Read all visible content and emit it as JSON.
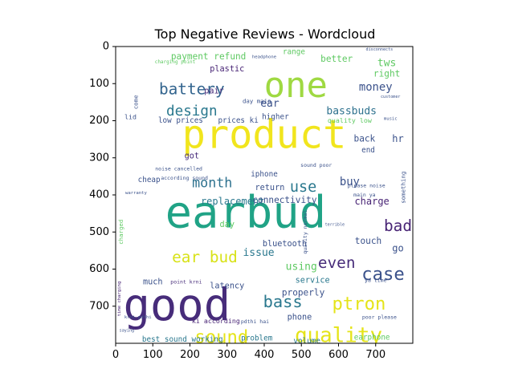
{
  "chart_data": {
    "type": "wordcloud",
    "title": "Top Negative Reviews - Wordcloud",
    "xlabel": "",
    "ylabel": "",
    "xlim": [
      0,
      800
    ],
    "ylim": [
      800,
      0
    ],
    "x_ticks": [
      0,
      100,
      200,
      300,
      400,
      500,
      600,
      700
    ],
    "y_ticks": [
      0,
      100,
      200,
      300,
      400,
      500,
      600,
      700
    ],
    "grid": false,
    "colormap": "viridis",
    "background": "#ffffff",
    "words": [
      {
        "text": "one",
        "x": 485,
        "y": 110,
        "size": 95,
        "color": "#9fd942"
      },
      {
        "text": "product",
        "x": 400,
        "y": 245,
        "size": 105,
        "color": "#f1e51d"
      },
      {
        "text": "earbud",
        "x": 350,
        "y": 455,
        "size": 120,
        "color": "#20a386"
      },
      {
        "text": "good",
        "x": 165,
        "y": 705,
        "size": 120,
        "color": "#472c7a"
      },
      {
        "text": "battery",
        "x": 205,
        "y": 117,
        "size": 42,
        "color": "#32648e"
      },
      {
        "text": "design",
        "x": 205,
        "y": 175,
        "size": 38,
        "color": "#2a788e"
      },
      {
        "text": "month",
        "x": 260,
        "y": 370,
        "size": 36,
        "color": "#2d718e"
      },
      {
        "text": "use",
        "x": 505,
        "y": 380,
        "size": 40,
        "color": "#2a788e"
      },
      {
        "text": "bad",
        "x": 760,
        "y": 485,
        "size": 42,
        "color": "#482475"
      },
      {
        "text": "case",
        "x": 720,
        "y": 615,
        "size": 48,
        "color": "#3b528b"
      },
      {
        "text": "even",
        "x": 595,
        "y": 585,
        "size": 42,
        "color": "#472c7a"
      },
      {
        "text": "ear bud",
        "x": 240,
        "y": 570,
        "size": 42,
        "color": "#d8e219"
      },
      {
        "text": "bass",
        "x": 450,
        "y": 690,
        "size": 44,
        "color": "#2a788e"
      },
      {
        "text": "ptron",
        "x": 655,
        "y": 695,
        "size": 48,
        "color": "#e5e419"
      },
      {
        "text": "sound",
        "x": 285,
        "y": 785,
        "size": 48,
        "color": "#e5e419"
      },
      {
        "text": "quality",
        "x": 600,
        "y": 780,
        "size": 56,
        "color": "#e5e419"
      },
      {
        "text": "payment refund",
        "x": 250,
        "y": 28,
        "size": 24,
        "color": "#5ec962"
      },
      {
        "text": "money",
        "x": 700,
        "y": 110,
        "size": 30,
        "color": "#3b528b"
      },
      {
        "text": "bassbuds",
        "x": 635,
        "y": 175,
        "size": 28,
        "color": "#2d718e"
      },
      {
        "text": "replacement",
        "x": 315,
        "y": 418,
        "size": 26,
        "color": "#2a788e"
      },
      {
        "text": "buy",
        "x": 630,
        "y": 365,
        "size": 30,
        "color": "#3b528b"
      },
      {
        "text": "charge",
        "x": 690,
        "y": 418,
        "size": 26,
        "color": "#482475"
      },
      {
        "text": "issue",
        "x": 385,
        "y": 557,
        "size": 28,
        "color": "#2a788e"
      },
      {
        "text": "using",
        "x": 500,
        "y": 595,
        "size": 28,
        "color": "#5ec962"
      },
      {
        "text": "connectivity",
        "x": 455,
        "y": 415,
        "size": 24,
        "color": "#3b528b"
      },
      {
        "text": "bluetooth",
        "x": 455,
        "y": 532,
        "size": 22,
        "color": "#3b528b"
      },
      {
        "text": "latency",
        "x": 300,
        "y": 645,
        "size": 22,
        "color": "#3b528b"
      },
      {
        "text": "properly",
        "x": 505,
        "y": 665,
        "size": 24,
        "color": "#3b528b"
      },
      {
        "text": "service",
        "x": 530,
        "y": 630,
        "size": 22,
        "color": "#2a788e"
      },
      {
        "text": "touch",
        "x": 680,
        "y": 525,
        "size": 24,
        "color": "#3b528b"
      },
      {
        "text": "go",
        "x": 760,
        "y": 545,
        "size": 26,
        "color": "#3b528b"
      },
      {
        "text": "tws",
        "x": 730,
        "y": 45,
        "size": 28,
        "color": "#5ec962"
      },
      {
        "text": "right",
        "x": 730,
        "y": 75,
        "size": 24,
        "color": "#5ec962"
      },
      {
        "text": "better",
        "x": 595,
        "y": 35,
        "size": 24,
        "color": "#5ec962"
      },
      {
        "text": "range",
        "x": 480,
        "y": 15,
        "size": 20,
        "color": "#5ec962"
      },
      {
        "text": "plastic",
        "x": 300,
        "y": 60,
        "size": 22,
        "color": "#482475"
      },
      {
        "text": "pair",
        "x": 265,
        "y": 120,
        "size": 22,
        "color": "#472c7a"
      },
      {
        "text": "ear",
        "x": 415,
        "y": 155,
        "size": 28,
        "color": "#3b528b"
      },
      {
        "text": "higher",
        "x": 430,
        "y": 190,
        "size": 20,
        "color": "#3b528b"
      },
      {
        "text": "low prices",
        "x": 175,
        "y": 200,
        "size": 20,
        "color": "#3b528b"
      },
      {
        "text": "prices ki",
        "x": 330,
        "y": 200,
        "size": 20,
        "color": "#3b528b"
      },
      {
        "text": "back",
        "x": 670,
        "y": 250,
        "size": 24,
        "color": "#3b528b"
      },
      {
        "text": "hr",
        "x": 760,
        "y": 250,
        "size": 26,
        "color": "#3b528b"
      },
      {
        "text": "end",
        "x": 680,
        "y": 280,
        "size": 20,
        "color": "#3b528b"
      },
      {
        "text": "got",
        "x": 205,
        "y": 295,
        "size": 22,
        "color": "#472c7a"
      },
      {
        "text": "cheap",
        "x": 90,
        "y": 360,
        "size": 20,
        "color": "#3b528b"
      },
      {
        "text": "return",
        "x": 415,
        "y": 380,
        "size": 22,
        "color": "#3b528b"
      },
      {
        "text": "iphone",
        "x": 400,
        "y": 345,
        "size": 20,
        "color": "#3b528b"
      },
      {
        "text": "day",
        "x": 300,
        "y": 480,
        "size": 22,
        "color": "#5ec962"
      },
      {
        "text": "much",
        "x": 100,
        "y": 635,
        "size": 22,
        "color": "#3b528b"
      },
      {
        "text": "phone",
        "x": 495,
        "y": 730,
        "size": 22,
        "color": "#3b528b"
      },
      {
        "text": "best sound working",
        "x": 180,
        "y": 790,
        "size": 20,
        "color": "#2a788e"
      },
      {
        "text": "problem",
        "x": 380,
        "y": 787,
        "size": 20,
        "color": "#2a788e"
      },
      {
        "text": "volume",
        "x": 515,
        "y": 795,
        "size": 20,
        "color": "#2a788e"
      },
      {
        "text": "earphone",
        "x": 690,
        "y": 785,
        "size": 20,
        "color": "#5ec962"
      },
      {
        "text": "ki according",
        "x": 270,
        "y": 740,
        "size": 18,
        "color": "#482475"
      },
      {
        "text": "quality low",
        "x": 630,
        "y": 200,
        "size": 18,
        "color": "#5ec962"
      },
      {
        "text": "day main",
        "x": 380,
        "y": 148,
        "size": 16,
        "color": "#3b528b"
      },
      {
        "text": "noise cancelled",
        "x": 170,
        "y": 330,
        "size": 14,
        "color": "#3b528b"
      },
      {
        "text": "according sound",
        "x": 185,
        "y": 355,
        "size": 14,
        "color": "#3b528b"
      },
      {
        "text": "charging point",
        "x": 160,
        "y": 42,
        "size": 13,
        "color": "#5ec962"
      },
      {
        "text": "please noise",
        "x": 675,
        "y": 375,
        "size": 14,
        "color": "#3b528b"
      },
      {
        "text": "main ya",
        "x": 670,
        "y": 400,
        "size": 14,
        "color": "#3b528b"
      },
      {
        "text": "poor please",
        "x": 710,
        "y": 730,
        "size": 14,
        "color": "#3b528b"
      },
      {
        "text": "ya time",
        "x": 700,
        "y": 630,
        "size": 14,
        "color": "#3b528b"
      },
      {
        "text": "point krni",
        "x": 190,
        "y": 635,
        "size": 14,
        "color": "#472c7a"
      },
      {
        "text": "sound poor",
        "x": 540,
        "y": 320,
        "size": 14,
        "color": "#3b528b"
      },
      {
        "text": "pdthi hai",
        "x": 375,
        "y": 742,
        "size": 14,
        "color": "#3b528b"
      },
      {
        "text": "something",
        "x": 775,
        "y": 380,
        "size": 16,
        "color": "#3b528b",
        "rotate": -90
      },
      {
        "text": "charged",
        "x": 15,
        "y": 500,
        "size": 16,
        "color": "#5ec962",
        "rotate": -90
      },
      {
        "text": "come",
        "x": 55,
        "y": 150,
        "size": 16,
        "color": "#3b528b",
        "rotate": -90
      },
      {
        "text": "quality normal",
        "x": 510,
        "y": 500,
        "size": 14,
        "color": "#3b528b",
        "rotate": -90
      },
      {
        "text": "time charging",
        "x": 10,
        "y": 680,
        "size": 12,
        "color": "#482475",
        "rotate": -90
      },
      {
        "text": "lid",
        "x": 40,
        "y": 190,
        "size": 18,
        "color": "#3b528b"
      },
      {
        "text": "headphone",
        "x": 400,
        "y": 28,
        "size": 12,
        "color": "#3b528b"
      },
      {
        "text": "warranty",
        "x": 55,
        "y": 395,
        "size": 12,
        "color": "#3b528b"
      },
      {
        "text": "disconnects",
        "x": 710,
        "y": 8,
        "size": 11,
        "color": "#3b528b"
      },
      {
        "text": "customer",
        "x": 740,
        "y": 135,
        "size": 11,
        "color": "#3b528b"
      },
      {
        "text": "music",
        "x": 740,
        "y": 195,
        "size": 12,
        "color": "#3b528b"
      },
      {
        "text": "krni pdthi",
        "x": 60,
        "y": 730,
        "size": 12,
        "color": "#3b528b"
      },
      {
        "text": "saying",
        "x": 30,
        "y": 765,
        "size": 11,
        "color": "#3b528b"
      },
      {
        "text": "terrible",
        "x": 590,
        "y": 480,
        "size": 11,
        "color": "#3b528b"
      }
    ]
  }
}
